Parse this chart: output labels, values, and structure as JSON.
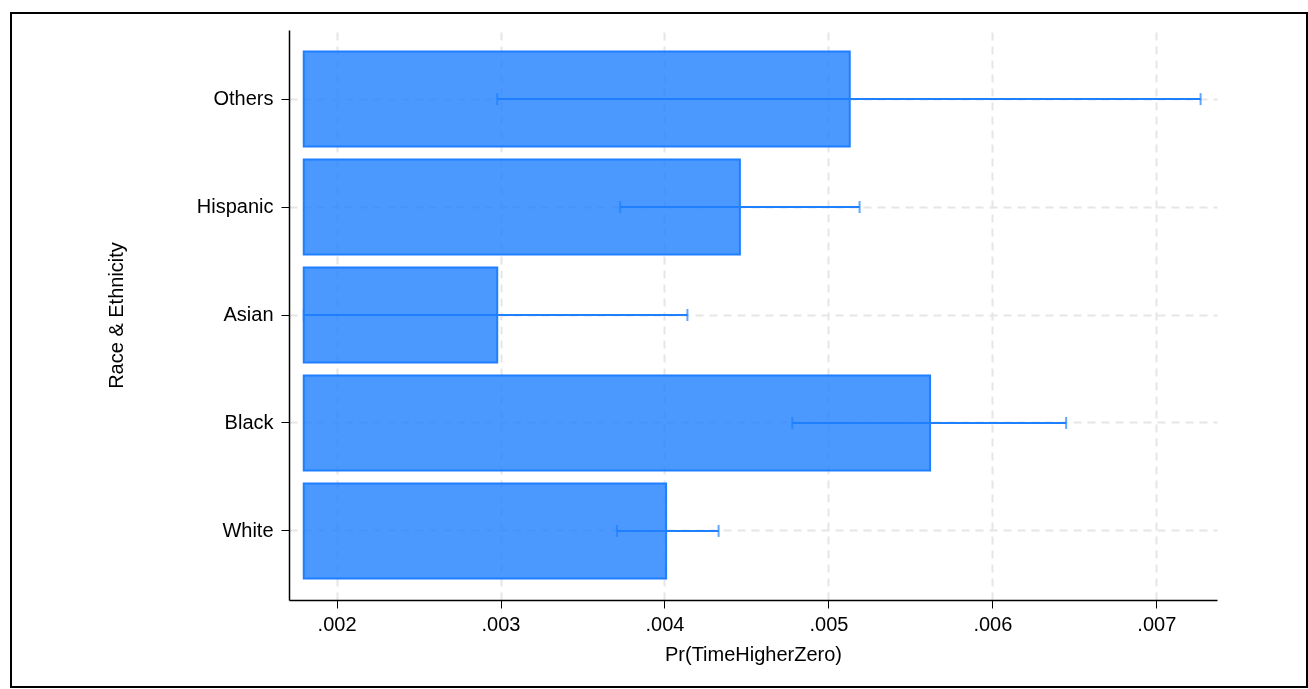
{
  "chart_data": {
    "type": "bar",
    "orientation": "horizontal",
    "xlabel": "Pr(TimeHigherZero)",
    "ylabel": "Race & Ethnicity",
    "categories": [
      "Others",
      "Hispanic",
      "Asian",
      "Black",
      "White"
    ],
    "base": [
      0.0018,
      0.0018,
      0.0018,
      0.0018,
      0.0018
    ],
    "values": [
      0.00333,
      0.00266,
      0.00118,
      0.00382,
      0.00221
    ],
    "errors": [
      [
        0.00298,
        0.00727
      ],
      [
        0.00373,
        0.00519
      ],
      [
        0.0018,
        0.00414
      ],
      [
        0.00478,
        0.00645
      ],
      [
        0.00371,
        0.00433
      ]
    ],
    "color": "#1e7fff",
    "xlim": [
      0.00171,
      0.00737
    ],
    "xticks": [
      {
        "value": 0.002,
        "label": ".002"
      },
      {
        "value": 0.003,
        "label": ".003"
      },
      {
        "value": 0.004,
        "label": ".004"
      },
      {
        "value": 0.005,
        "label": ".005"
      },
      {
        "value": 0.006,
        "label": ".006"
      },
      {
        "value": 0.007,
        "label": ".007"
      }
    ],
    "grid": true
  }
}
